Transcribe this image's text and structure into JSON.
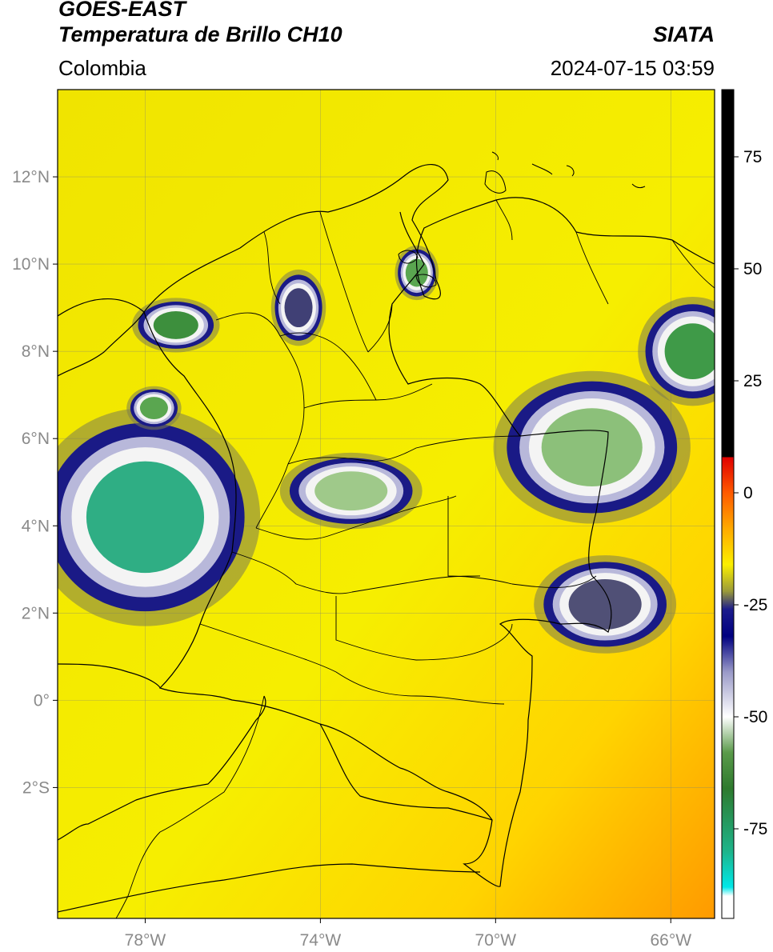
{
  "header": {
    "satellite": "GOES-EAST",
    "product": "Temperatura de Brillo CH10",
    "region": "Colombia",
    "agency": "SIATA",
    "datetime": "2024-07-15 03:59"
  },
  "map": {
    "projection": "PlateCarree",
    "lon_range": [
      -80,
      -65
    ],
    "lat_range": [
      -5,
      14
    ],
    "graticule": true,
    "lon_ticks": [
      {
        "value": -78,
        "label": "78°W"
      },
      {
        "value": -74,
        "label": "74°W"
      },
      {
        "value": -70,
        "label": "70°W"
      },
      {
        "value": -66,
        "label": "66°W"
      }
    ],
    "lat_ticks": [
      {
        "value": 12,
        "label": "12°N"
      },
      {
        "value": 10,
        "label": "10°N"
      },
      {
        "value": 8,
        "label": "8°N"
      },
      {
        "value": 6,
        "label": "6°N"
      },
      {
        "value": 4,
        "label": "4°N"
      },
      {
        "value": 2,
        "label": "2°N"
      },
      {
        "value": 0,
        "label": "0°"
      },
      {
        "value": -2,
        "label": "2°S"
      }
    ],
    "background_color": "#f3ee00",
    "cloud_cells": [
      {
        "lon": -78.0,
        "lat": 4.2,
        "rx": 2.1,
        "ry": 2.0,
        "core": "#2fae84"
      },
      {
        "lon": -77.3,
        "lat": 8.6,
        "rx": 0.8,
        "ry": 0.5,
        "core": "#3d8f3d"
      },
      {
        "lon": -77.8,
        "lat": 6.7,
        "rx": 0.5,
        "ry": 0.4,
        "core": "#5aa650"
      },
      {
        "lon": -73.3,
        "lat": 4.8,
        "rx": 1.3,
        "ry": 0.7,
        "core": "#9fc98a"
      },
      {
        "lon": -67.8,
        "lat": 5.8,
        "rx": 1.8,
        "ry": 1.4,
        "core": "#8cc07a"
      },
      {
        "lon": -65.5,
        "lat": 8.0,
        "rx": 1.0,
        "ry": 1.0,
        "core": "#3f9a48"
      },
      {
        "lon": -71.8,
        "lat": 9.8,
        "rx": 0.4,
        "ry": 0.5,
        "core": "#5aa650"
      },
      {
        "lon": -67.5,
        "lat": 2.2,
        "rx": 1.3,
        "ry": 0.9,
        "core": "#505076"
      },
      {
        "lon": -74.5,
        "lat": 9.0,
        "rx": 0.5,
        "ry": 0.7,
        "core": "#404075"
      }
    ]
  },
  "colorbar": {
    "ticks": [
      75,
      50,
      25,
      0,
      -25,
      -50,
      -75
    ],
    "range": [
      -95,
      90
    ],
    "stops": [
      {
        "value": 90,
        "color": "#000000"
      },
      {
        "value": 8,
        "color": "#000000"
      },
      {
        "value": 7.9,
        "color": "#e00000"
      },
      {
        "value": 0,
        "color": "#ff5a00"
      },
      {
        "value": -8,
        "color": "#ffaa00"
      },
      {
        "value": -16,
        "color": "#fbef00"
      },
      {
        "value": -22,
        "color": "#9a9a3a"
      },
      {
        "value": -26,
        "color": "#1c1c8c"
      },
      {
        "value": -32,
        "color": "#000080"
      },
      {
        "value": -40,
        "color": "#9a9ac8"
      },
      {
        "value": -50,
        "color": "#ffffff"
      },
      {
        "value": -58,
        "color": "#5a9a4a"
      },
      {
        "value": -66,
        "color": "#2e7a2e"
      },
      {
        "value": -80,
        "color": "#1eb48a"
      },
      {
        "value": -88,
        "color": "#00e8e8"
      },
      {
        "value": -90,
        "color": "#ffffff"
      },
      {
        "value": -95,
        "color": "#ffffff"
      }
    ]
  }
}
